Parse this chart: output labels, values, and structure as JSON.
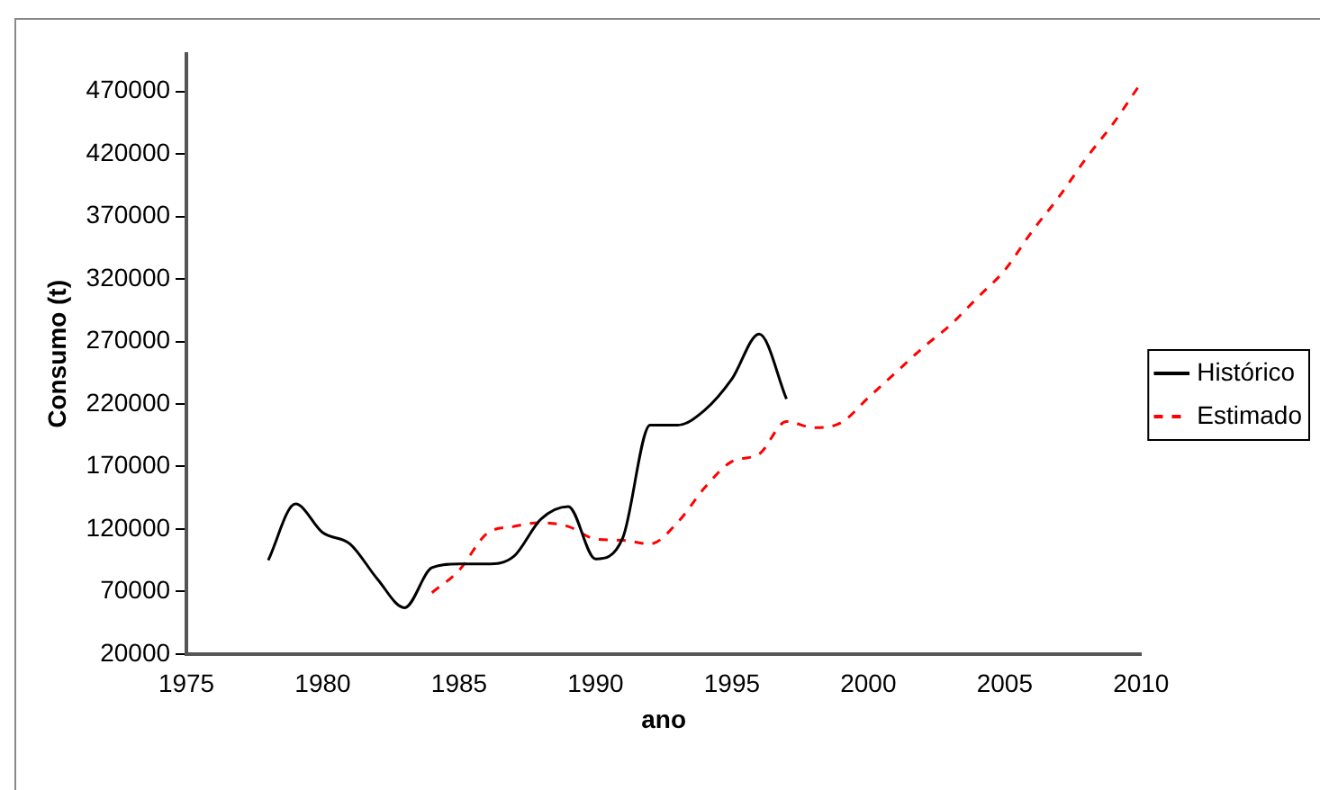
{
  "chart_data": {
    "type": "line",
    "xlabel": "ano",
    "ylabel": "Consumo (t)",
    "xlim": [
      1975,
      2010
    ],
    "xticks": [
      1975,
      1980,
      1985,
      1990,
      1995,
      2000,
      2005,
      2010
    ],
    "ylim": [
      20000,
      500000
    ],
    "yticks": [
      20000,
      70000,
      120000,
      170000,
      220000,
      270000,
      320000,
      370000,
      420000,
      470000
    ],
    "grid": false,
    "legend": "right",
    "marker": "none",
    "series": [
      {
        "name": "Histórico",
        "color": "#000000",
        "line_style": "solid",
        "x": [
          1978,
          1979,
          1980,
          1981,
          1982,
          1983,
          1984,
          1985,
          1986,
          1987,
          1988,
          1989,
          1990,
          1991,
          1992,
          1993,
          1994,
          1995,
          1996,
          1997
        ],
        "values": [
          95000,
          140000,
          117000,
          108000,
          80000,
          57000,
          89000,
          92000,
          92000,
          98000,
          128000,
          138000,
          96000,
          113000,
          203000,
          203000,
          215000,
          240000,
          276000,
          224000
        ]
      },
      {
        "name": "Estimado",
        "color": "#ff0000",
        "line_style": "dashed",
        "x": [
          1984,
          1985,
          1986,
          1987,
          1988,
          1989,
          1990,
          1991,
          1992,
          1993,
          1994,
          1995,
          1996,
          1997,
          1998,
          1999,
          2000,
          2001,
          2002,
          2003,
          2004,
          2005,
          2006,
          2007,
          2008,
          2009,
          2010
        ],
        "values": [
          69000,
          87000,
          116000,
          122000,
          125000,
          122000,
          112000,
          111000,
          108000,
          125000,
          153000,
          174000,
          180000,
          206000,
          201000,
          205000,
          225000,
          245000,
          265000,
          283000,
          305000,
          327000,
          358000,
          386000,
          417000,
          445000,
          477000
        ]
      }
    ]
  }
}
